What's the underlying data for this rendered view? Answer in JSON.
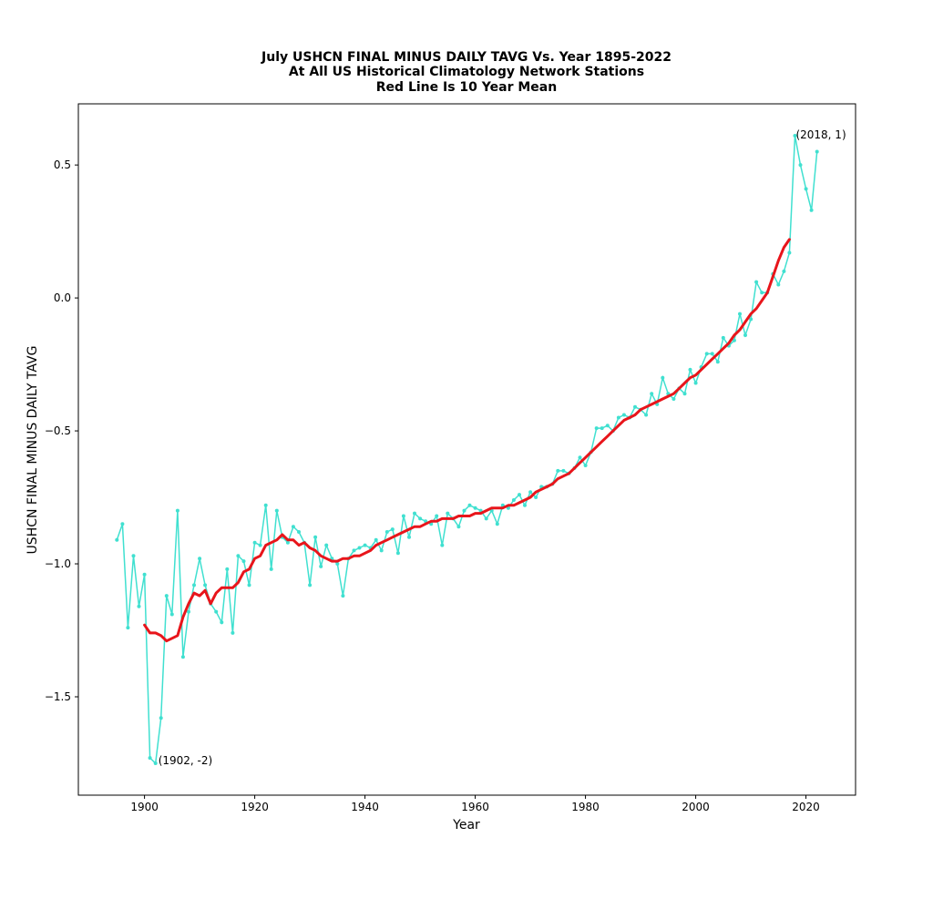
{
  "colors": {
    "series": "#40e0d0",
    "mean": "#e8151b",
    "axes": "#000000",
    "background": "#ffffff"
  },
  "chart_data": {
    "type": "line",
    "title_lines": [
      "July USHCN FINAL MINUS DAILY TAVG Vs. Year 1895-2022",
      "At All US Historical Climatology Network Stations",
      "Red Line Is 10 Year Mean"
    ],
    "xlabel": "Year",
    "ylabel": "USHCN FINAL MINUS DAILY TAVG",
    "xlim": [
      1888,
      2029
    ],
    "ylim": [
      -1.87,
      0.73
    ],
    "xticks": [
      1900,
      1920,
      1940,
      1960,
      1980,
      2000,
      2020
    ],
    "yticks": [
      0.5,
      0.0,
      -0.5,
      -1.0,
      -1.5
    ],
    "ytick_labels": [
      "0.5",
      "0.0",
      "−0.5",
      "−1.0",
      "−1.5"
    ],
    "grid": false,
    "legend": "none",
    "annotations": [
      {
        "text": "(1902, -2)",
        "x": 1902,
        "y": -1.75
      },
      {
        "text": "(2018, 1)",
        "x": 2018,
        "y": 0.61
      }
    ],
    "series": [
      {
        "style": "line-with-dots",
        "x": [
          1895,
          1896,
          1897,
          1898,
          1899,
          1900,
          1901,
          1902,
          1903,
          1904,
          1905,
          1906,
          1907,
          1908,
          1909,
          1910,
          1911,
          1912,
          1913,
          1914,
          1915,
          1916,
          1917,
          1918,
          1919,
          1920,
          1921,
          1922,
          1923,
          1924,
          1925,
          1926,
          1927,
          1928,
          1929,
          1930,
          1931,
          1932,
          1933,
          1934,
          1935,
          1936,
          1937,
          1938,
          1939,
          1940,
          1941,
          1942,
          1943,
          1944,
          1945,
          1946,
          1947,
          1948,
          1949,
          1950,
          1951,
          1952,
          1953,
          1954,
          1955,
          1956,
          1957,
          1958,
          1959,
          1960,
          1961,
          1962,
          1963,
          1964,
          1965,
          1966,
          1967,
          1968,
          1969,
          1970,
          1971,
          1972,
          1973,
          1974,
          1975,
          1976,
          1977,
          1978,
          1979,
          1980,
          1981,
          1982,
          1983,
          1984,
          1985,
          1986,
          1987,
          1988,
          1989,
          1990,
          1991,
          1992,
          1993,
          1994,
          1995,
          1996,
          1997,
          1998,
          1999,
          2000,
          2001,
          2002,
          2003,
          2004,
          2005,
          2006,
          2007,
          2008,
          2009,
          2010,
          2011,
          2012,
          2013,
          2014,
          2015,
          2016,
          2017,
          2018,
          2019,
          2020,
          2021,
          2022
        ],
        "values": [
          -0.91,
          -0.85,
          -1.24,
          -0.97,
          -1.16,
          -1.04,
          -1.73,
          -1.75,
          -1.58,
          -1.12,
          -1.19,
          -0.8,
          -1.35,
          -1.18,
          -1.08,
          -0.98,
          -1.08,
          -1.15,
          -1.18,
          -1.22,
          -1.02,
          -1.26,
          -0.97,
          -0.99,
          -1.08,
          -0.92,
          -0.93,
          -0.78,
          -1.02,
          -0.8,
          -0.9,
          -0.92,
          -0.86,
          -0.88,
          -0.92,
          -1.08,
          -0.9,
          -1.01,
          -0.93,
          -0.98,
          -1.0,
          -1.12,
          -0.98,
          -0.95,
          -0.94,
          -0.93,
          -0.94,
          -0.91,
          -0.95,
          -0.88,
          -0.87,
          -0.96,
          -0.82,
          -0.9,
          -0.81,
          -0.83,
          -0.84,
          -0.85,
          -0.82,
          -0.93,
          -0.81,
          -0.83,
          -0.86,
          -0.8,
          -0.78,
          -0.79,
          -0.8,
          -0.83,
          -0.8,
          -0.85,
          -0.78,
          -0.79,
          -0.76,
          -0.74,
          -0.78,
          -0.73,
          -0.75,
          -0.71,
          -0.71,
          -0.7,
          -0.65,
          -0.65,
          -0.66,
          -0.64,
          -0.6,
          -0.63,
          -0.58,
          -0.49,
          -0.49,
          -0.48,
          -0.5,
          -0.45,
          -0.44,
          -0.45,
          -0.41,
          -0.42,
          -0.44,
          -0.36,
          -0.4,
          -0.3,
          -0.36,
          -0.38,
          -0.34,
          -0.36,
          -0.27,
          -0.32,
          -0.26,
          -0.21,
          -0.21,
          -0.24,
          -0.15,
          -0.18,
          -0.16,
          -0.06,
          -0.14,
          -0.08,
          0.06,
          0.02,
          0.02,
          0.09,
          0.05,
          0.1,
          0.17,
          0.61,
          0.5,
          0.41,
          0.33,
          0.55
        ]
      },
      {
        "style": "thick-line",
        "x": [
          1900,
          1901,
          1902,
          1903,
          1904,
          1905,
          1906,
          1907,
          1908,
          1909,
          1910,
          1911,
          1912,
          1913,
          1914,
          1915,
          1916,
          1917,
          1918,
          1919,
          1920,
          1921,
          1922,
          1923,
          1924,
          1925,
          1926,
          1927,
          1928,
          1929,
          1930,
          1931,
          1932,
          1933,
          1934,
          1935,
          1936,
          1937,
          1938,
          1939,
          1940,
          1941,
          1942,
          1943,
          1944,
          1945,
          1946,
          1947,
          1948,
          1949,
          1950,
          1951,
          1952,
          1953,
          1954,
          1955,
          1956,
          1957,
          1958,
          1959,
          1960,
          1961,
          1962,
          1963,
          1964,
          1965,
          1966,
          1967,
          1968,
          1969,
          1970,
          1971,
          1972,
          1973,
          1974,
          1975,
          1976,
          1977,
          1978,
          1979,
          1980,
          1981,
          1982,
          1983,
          1984,
          1985,
          1986,
          1987,
          1988,
          1989,
          1990,
          1991,
          1992,
          1993,
          1994,
          1995,
          1996,
          1997,
          1998,
          1999,
          2000,
          2001,
          2002,
          2003,
          2004,
          2005,
          2006,
          2007,
          2008,
          2009,
          2010,
          2011,
          2012,
          2013,
          2014,
          2015,
          2016,
          2017
        ],
        "values": [
          -1.23,
          -1.26,
          -1.26,
          -1.27,
          -1.29,
          -1.28,
          -1.27,
          -1.2,
          -1.15,
          -1.11,
          -1.12,
          -1.1,
          -1.15,
          -1.11,
          -1.09,
          -1.09,
          -1.09,
          -1.07,
          -1.03,
          -1.02,
          -0.98,
          -0.97,
          -0.93,
          -0.92,
          -0.91,
          -0.89,
          -0.91,
          -0.91,
          -0.93,
          -0.92,
          -0.94,
          -0.95,
          -0.97,
          -0.98,
          -0.99,
          -0.99,
          -0.98,
          -0.98,
          -0.97,
          -0.97,
          -0.96,
          -0.95,
          -0.93,
          -0.92,
          -0.91,
          -0.9,
          -0.89,
          -0.88,
          -0.87,
          -0.86,
          -0.86,
          -0.85,
          -0.84,
          -0.84,
          -0.83,
          -0.83,
          -0.83,
          -0.82,
          -0.82,
          -0.82,
          -0.81,
          -0.81,
          -0.8,
          -0.79,
          -0.79,
          -0.79,
          -0.78,
          -0.78,
          -0.77,
          -0.76,
          -0.75,
          -0.73,
          -0.72,
          -0.71,
          -0.7,
          -0.68,
          -0.67,
          -0.66,
          -0.64,
          -0.62,
          -0.6,
          -0.58,
          -0.56,
          -0.54,
          -0.52,
          -0.5,
          -0.48,
          -0.46,
          -0.45,
          -0.44,
          -0.42,
          -0.41,
          -0.4,
          -0.39,
          -0.38,
          -0.37,
          -0.36,
          -0.34,
          -0.32,
          -0.3,
          -0.29,
          -0.27,
          -0.25,
          -0.23,
          -0.21,
          -0.19,
          -0.17,
          -0.14,
          -0.12,
          -0.09,
          -0.06,
          -0.04,
          -0.01,
          0.02,
          0.08,
          0.14,
          0.19,
          0.22
        ]
      }
    ]
  }
}
